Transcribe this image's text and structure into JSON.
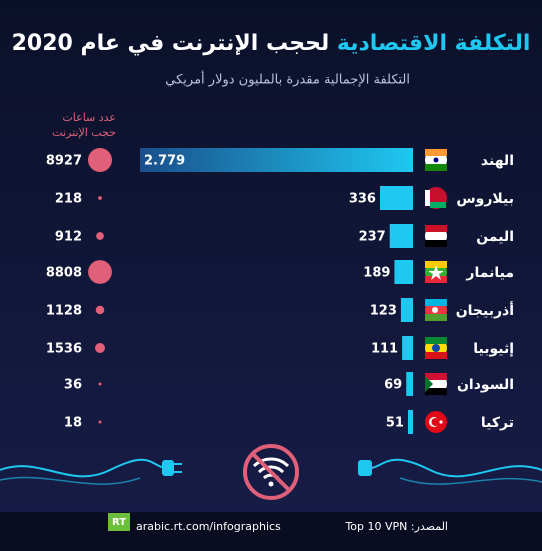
{
  "chart_data": {
    "type": "bar",
    "title_parts": [
      "التكلفة الاقتصادية",
      "لحجب الإنترنت في عام 2020"
    ],
    "subtitle": "التكلفة الإجمالية مقدرة بالمليون دولار أمريكي",
    "hours_label": [
      "عدد ساعات",
      "حجب الإنترنت"
    ],
    "categories": [
      "الهند",
      "بيلاروس",
      "اليمن",
      "ميانمار",
      "أذربيجان",
      "إثيوبيا",
      "السودان",
      "تركيا"
    ],
    "values": [
      2779,
      336,
      237,
      189,
      123,
      111,
      69,
      51
    ],
    "value_labels": [
      "2.779",
      "336",
      "237",
      "189",
      "123",
      "111",
      "69",
      "51"
    ],
    "color": "#1ec8f0",
    "hours": [
      8927,
      218,
      912,
      8808,
      1128,
      1536,
      36,
      18
    ],
    "hours_color": "#e0607a",
    "source": "المصدر: Top 10 VPN",
    "website": "arabic.rt.com/infographics",
    "logo": "RT"
  }
}
